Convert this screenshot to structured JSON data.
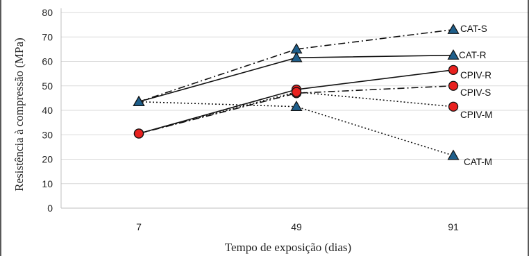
{
  "chart_data": {
    "type": "line",
    "title": "",
    "xlabel": "Tempo de exposição (dias)",
    "ylabel": "Resistência à compressão (MPa)",
    "categories": [
      "7",
      "49",
      "91"
    ],
    "ylim": [
      0,
      80
    ],
    "yticks": [
      0,
      10,
      20,
      30,
      40,
      50,
      60,
      70,
      80
    ],
    "grid": true,
    "legend": "none",
    "series": [
      {
        "name": "CAT-S",
        "values": [
          43.5,
          65,
          73
        ],
        "marker": "triangle",
        "line": "dashdot",
        "color": "#1f5f8b"
      },
      {
        "name": "CAT-R",
        "values": [
          43.5,
          61.5,
          62.5
        ],
        "marker": "triangle",
        "line": "solid",
        "color": "#1f5f8b"
      },
      {
        "name": "CPIV-R",
        "values": [
          30.5,
          48.5,
          56.5
        ],
        "marker": "circle",
        "line": "solid",
        "color": "#e8211f"
      },
      {
        "name": "CPIV-S",
        "values": [
          30.5,
          47,
          50
        ],
        "marker": "circle",
        "line": "dashdot",
        "color": "#e8211f"
      },
      {
        "name": "CPIV-M",
        "values": [
          30.5,
          47.5,
          41.5
        ],
        "marker": "circle",
        "line": "dotted",
        "color": "#e8211f"
      },
      {
        "name": "CAT-M",
        "values": [
          43.5,
          41.5,
          21.5
        ],
        "marker": "triangle",
        "line": "dotted",
        "color": "#1f5f8b"
      }
    ]
  }
}
